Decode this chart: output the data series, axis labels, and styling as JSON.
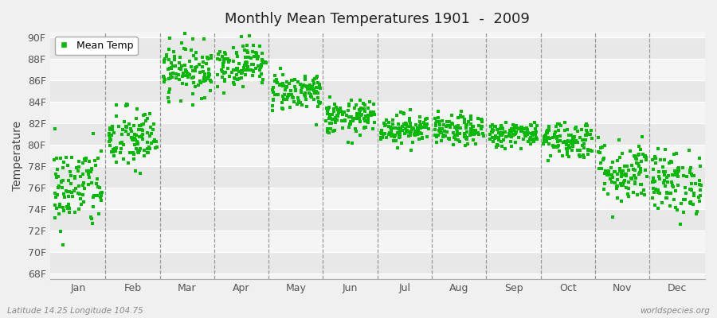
{
  "title": "Monthly Mean Temperatures 1901  -  2009",
  "ylabel": "Temperature",
  "xlabel_labels": [
    "Jan",
    "Feb",
    "Mar",
    "Apr",
    "May",
    "Jun",
    "Jul",
    "Aug",
    "Sep",
    "Oct",
    "Nov",
    "Dec"
  ],
  "ytick_labels": [
    "68F",
    "70F",
    "72F",
    "74F",
    "76F",
    "78F",
    "80F",
    "82F",
    "84F",
    "86F",
    "88F",
    "90F"
  ],
  "ytick_values": [
    68,
    70,
    72,
    74,
    76,
    78,
    80,
    82,
    84,
    86,
    88,
    90
  ],
  "ylim": [
    67.5,
    90.5
  ],
  "dot_color": "#00bb00",
  "bg_color": "#f0f0f0",
  "plot_bg_color_light": "#f5f5f5",
  "plot_bg_color_dark": "#e8e8e8",
  "legend_label": "Mean Temp",
  "bottom_left_text": "Latitude 14.25 Longitude 104.75",
  "bottom_right_text": "worldspecies.org",
  "n_years": 109,
  "monthly_means": [
    76.0,
    80.5,
    87.0,
    87.5,
    85.0,
    82.5,
    81.5,
    81.3,
    81.0,
    80.5,
    77.5,
    76.5
  ],
  "monthly_stds": [
    2.0,
    1.5,
    1.2,
    1.0,
    0.9,
    0.8,
    0.7,
    0.7,
    0.6,
    0.9,
    1.5,
    1.5
  ],
  "seed": 42
}
